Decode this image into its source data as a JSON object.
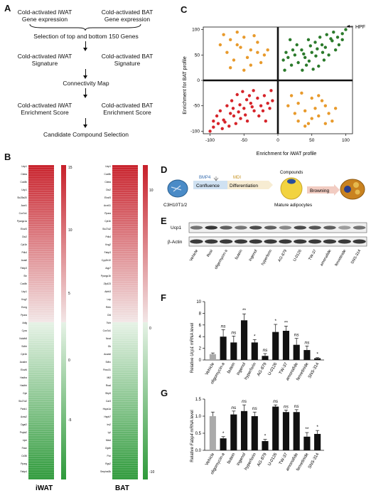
{
  "panels": {
    "A": "A",
    "B": "B",
    "C": "C",
    "D": "D",
    "E": "E",
    "F": "F",
    "G": "G"
  },
  "flowchart": {
    "top_left": "Cold-activated iWAT\nGene expression",
    "top_right": "Cold-activated BAT\nGene expression",
    "step1": "Selection of top and bottom 150 Genes",
    "sig_left": "Cold-activated iWAT\nSignature",
    "sig_right": "Cold-activated BAT\nSignature",
    "step2": "Connectivity Map",
    "enr_left": "Cold-activated iWAT\nEnrichment Score",
    "enr_right": "Cold-activated BAT\nEnrichment Score",
    "step3": "Candidate Compound Selection"
  },
  "heatmap": {
    "left_label": "iWAT",
    "right_label": "BAT",
    "left_scale": [
      "15",
      "10",
      "5",
      "0",
      "-5"
    ],
    "right_scale": [
      "10",
      "0",
      "-10"
    ],
    "top_color": "#c8202a",
    "mid_color": "#f3f3f3",
    "bottom_color": "#2e9a3a",
    "iwat_genes": [
      "Ucp1",
      "Cidea",
      "Cox8b",
      "Ucp1",
      "Slc25a20",
      "Acot1",
      "Cox7a1",
      "Ppargc1a",
      "Elovl3",
      "Dio2",
      "Cpt1b",
      "Pdk4",
      "Acadl",
      "Fabp3",
      "Sln",
      "Cox8b",
      "Ucp1",
      "Kng2",
      "Esrrg",
      "Ppara",
      "Adig",
      "Cycs",
      "Ndufb8",
      "Sdhb",
      "Cpt1b",
      "Acadm",
      "Elovl6",
      "Hadha",
      "Hadhb",
      "Gyk",
      "Slc27a2",
      "Pank1",
      "Acss2",
      "Dgat2",
      "Pnpla2",
      "Lipe",
      "Fasn",
      "Cd36",
      "Pparg",
      "Fabp4"
    ],
    "bat_genes": [
      "Ucp1",
      "Cox8b",
      "Cidea",
      "Dio2",
      "Elovl3",
      "Acot11",
      "Ppara",
      "Cpt1b",
      "Slc27a2",
      "Pdk4",
      "Kng2",
      "Fabp3",
      "Cyp2b10",
      "Aqp7",
      "Ppargc1b",
      "Zfp423",
      "Adrb3",
      "Lep",
      "Retn",
      "Cfd",
      "Tshr",
      "Cox7a1",
      "Nnat",
      "Gk",
      "Acadvl",
      "Sdhc",
      "Fbxo31",
      "Mt2",
      "Rrad",
      "Sfrp5",
      "Car3",
      "Hspa1a",
      "Hspb7",
      "Irs2",
      "Lpl",
      "Mest",
      "Ogdh",
      "Pcx",
      "Rgs2",
      "Serpina3k"
    ]
  },
  "scatter": {
    "xlabel": "Enrichment for iWAT profile",
    "ylabel": "Enrichment for BAT profile",
    "x_ticks": [
      "-100",
      "-50",
      "0",
      "50",
      "100"
    ],
    "y_ticks": [
      "100",
      "50",
      "0",
      "-50",
      "-100"
    ],
    "annotation": "HPF",
    "colors": {
      "pp": "#2b7a2b",
      "nn": "#d6242a",
      "pn": "#e89a2c",
      "np": "#e89a2c"
    }
  },
  "differentiation": {
    "cell_line": "C3H10T1/2",
    "bmp4": "BMP4",
    "mdi": "MDI",
    "confluence": "Confluence",
    "differentiation": "Differentiation",
    "compounds": "Compounds",
    "mature": "Mature adipocytes",
    "browning": "Browning"
  },
  "blot": {
    "ucp1": "Ucp1",
    "actin": "β-Actin",
    "lanes": [
      "Vehicle",
      "Rosi",
      "oligomycin-a",
      "butein",
      "ingenol",
      "hyperforin",
      "AG-879",
      "U-0126",
      "TW-37",
      "amonafide",
      "fenretinide",
      "SNS-314"
    ]
  },
  "barF": {
    "ylabel_pre": "Relative ",
    "ylabel_gene": "Ucp1",
    "ylabel_post": " mRNA level",
    "yticks": [
      "0",
      "2",
      "4",
      "6",
      "8",
      "10"
    ],
    "categories": [
      "Vehicle",
      "oligomycin-a",
      "butein",
      "ingenol",
      "hyperforin",
      "AG-879",
      "U-0126",
      "TW-37",
      "amonafide",
      "fenretinide",
      "SNS-314"
    ],
    "sig": [
      "",
      "ns",
      "ns",
      "**",
      "*",
      "ns",
      "*",
      "**",
      "ns",
      "ns",
      "*"
    ]
  },
  "barG": {
    "ylabel_pre": "Relative ",
    "ylabel_gene": "Fabp4",
    "ylabel_post": " mRNA level",
    "yticks": [
      "0.0",
      "0.5",
      "1.0",
      "1.5"
    ],
    "categories": [
      "Vehicle",
      "oligomycin-a",
      "butein",
      "ingenol",
      "hyperforin",
      "AG-879",
      "U-0126",
      "TW-37",
      "amonafide",
      "fenretinide",
      "SNS-314"
    ],
    "sig": [
      "",
      "*",
      "ns",
      "ns",
      "ns",
      "*",
      "ns",
      "ns",
      "ns",
      "**",
      "*"
    ]
  },
  "chart_data": [
    {
      "type": "scatter",
      "xlabel": "Enrichment for iWAT profile",
      "ylabel": "Enrichment for BAT profile",
      "xlim": [
        -110,
        110
      ],
      "ylim": [
        -105,
        105
      ],
      "annotation": "HPF",
      "series": [
        {
          "quadrant": "x>0,y>0",
          "color": "#2b7a2b",
          "points": [
            [
              100,
              100
            ],
            [
              95,
              92
            ],
            [
              88,
              85
            ],
            [
              80,
              78
            ],
            [
              72,
              90
            ],
            [
              65,
              70
            ],
            [
              58,
              62
            ],
            [
              50,
              55
            ],
            [
              45,
              80
            ],
            [
              40,
              45
            ],
            [
              35,
              60
            ],
            [
              30,
              35
            ],
            [
              25,
              50
            ],
            [
              20,
              30
            ],
            [
              15,
              45
            ],
            [
              10,
              20
            ],
            [
              85,
              60
            ],
            [
              75,
              50
            ],
            [
              68,
              40
            ],
            [
              60,
              28
            ],
            [
              52,
              22
            ],
            [
              90,
              70
            ],
            [
              82,
              95
            ],
            [
              70,
              65
            ],
            [
              62,
              85
            ],
            [
              55,
              75
            ],
            [
              48,
              68
            ],
            [
              42,
              30
            ],
            [
              36,
              20
            ],
            [
              28,
              70
            ],
            [
              22,
              60
            ],
            [
              18,
              80
            ],
            [
              12,
              55
            ],
            [
              8,
              40
            ],
            [
              95,
              80
            ],
            [
              78,
              82
            ],
            [
              66,
              55
            ],
            [
              56,
              48
            ],
            [
              46,
              38
            ],
            [
              38,
              52
            ]
          ]
        },
        {
          "quadrant": "x<0,y<0",
          "color": "#d6242a",
          "points": [
            [
              -100,
              -100
            ],
            [
              -95,
              -92
            ],
            [
              -88,
              -85
            ],
            [
              -80,
              -78
            ],
            [
              -72,
              -90
            ],
            [
              -65,
              -70
            ],
            [
              -58,
              -62
            ],
            [
              -50,
              -55
            ],
            [
              -45,
              -80
            ],
            [
              -40,
              -45
            ],
            [
              -35,
              -60
            ],
            [
              -30,
              -35
            ],
            [
              -25,
              -50
            ],
            [
              -20,
              -30
            ],
            [
              -15,
              -45
            ],
            [
              -10,
              -20
            ],
            [
              -85,
              -60
            ],
            [
              -75,
              -50
            ],
            [
              -68,
              -40
            ],
            [
              -60,
              -28
            ],
            [
              -52,
              -22
            ],
            [
              -90,
              -70
            ],
            [
              -82,
              -95
            ],
            [
              -70,
              -65
            ],
            [
              -62,
              -85
            ],
            [
              -55,
              -75
            ],
            [
              -48,
              -68
            ],
            [
              -42,
              -30
            ],
            [
              -36,
              -20
            ],
            [
              -28,
              -70
            ],
            [
              -22,
              -60
            ],
            [
              -18,
              -80
            ],
            [
              -12,
              -55
            ],
            [
              -8,
              -40
            ],
            [
              -95,
              -80
            ],
            [
              -78,
              -82
            ],
            [
              -66,
              -55
            ],
            [
              -56,
              -48
            ],
            [
              -46,
              -38
            ],
            [
              -38,
              -52
            ]
          ]
        },
        {
          "quadrant": "x<0,y>0",
          "color": "#e89a2c",
          "points": [
            [
              -80,
              90
            ],
            [
              -70,
              80
            ],
            [
              -60,
              70
            ],
            [
              -50,
              85
            ],
            [
              -40,
              60
            ],
            [
              -30,
              75
            ],
            [
              -20,
              50
            ],
            [
              -75,
              55
            ],
            [
              -65,
              40
            ],
            [
              -55,
              65
            ],
            [
              -45,
              45
            ],
            [
              -35,
              88
            ],
            [
              -25,
              35
            ],
            [
              -85,
              70
            ],
            [
              -15,
              60
            ],
            [
              -60,
              95
            ],
            [
              -40,
              30
            ],
            [
              -70,
              25
            ],
            [
              -50,
              20
            ],
            [
              -30,
              55
            ]
          ]
        },
        {
          "quadrant": "x>0,y<0",
          "color": "#e89a2c",
          "points": [
            [
              20,
              -30
            ],
            [
              30,
              -45
            ],
            [
              40,
              -60
            ],
            [
              50,
              -35
            ],
            [
              60,
              -70
            ],
            [
              70,
              -50
            ],
            [
              80,
              -80
            ],
            [
              25,
              -65
            ],
            [
              35,
              -25
            ],
            [
              45,
              -85
            ],
            [
              55,
              -55
            ],
            [
              65,
              -40
            ],
            [
              75,
              -65
            ],
            [
              85,
              -55
            ],
            [
              15,
              -50
            ],
            [
              40,
              -90
            ],
            [
              60,
              -30
            ],
            [
              50,
              -75
            ],
            [
              30,
              -80
            ],
            [
              70,
              -85
            ]
          ]
        }
      ]
    },
    {
      "type": "bar",
      "ylabel": "Relative Ucp1 mRNA level",
      "ylim": [
        0,
        10
      ],
      "categories": [
        "Vehicle",
        "oligomycin-a",
        "butein",
        "ingenol",
        "hyperforin",
        "AG-879",
        "U-0126",
        "TW-37",
        "amonafide",
        "fenretinide",
        "SNS-314"
      ],
      "values": [
        1.0,
        4.0,
        3.0,
        6.8,
        3.0,
        0.7,
        4.8,
        5.0,
        2.6,
        1.7,
        0.3
      ],
      "errors": [
        0.2,
        1.2,
        1.1,
        1.1,
        0.5,
        0.4,
        1.3,
        0.8,
        1.1,
        0.7,
        0.1
      ],
      "colors": [
        "#aaaaaa",
        "#111111",
        "#111111",
        "#111111",
        "#111111",
        "#111111",
        "#111111",
        "#111111",
        "#111111",
        "#111111",
        "#111111"
      ]
    },
    {
      "type": "bar",
      "ylabel": "Relative Fabp4 mRNA level",
      "ylim": [
        0,
        1.5
      ],
      "categories": [
        "Vehicle",
        "oligomycin-a",
        "butein",
        "ingenol",
        "hyperforin",
        "AG-879",
        "U-0126",
        "TW-37",
        "amonafide",
        "fenretinide",
        "SNS-314"
      ],
      "values": [
        1.0,
        0.35,
        1.05,
        1.15,
        1.0,
        0.27,
        1.28,
        1.12,
        1.12,
        0.4,
        0.48
      ],
      "errors": [
        0.12,
        0.05,
        0.1,
        0.18,
        0.12,
        0.05,
        0.05,
        0.06,
        0.07,
        0.12,
        0.1
      ],
      "colors": [
        "#aaaaaa",
        "#111111",
        "#111111",
        "#111111",
        "#111111",
        "#111111",
        "#111111",
        "#111111",
        "#111111",
        "#111111",
        "#111111"
      ]
    }
  ]
}
